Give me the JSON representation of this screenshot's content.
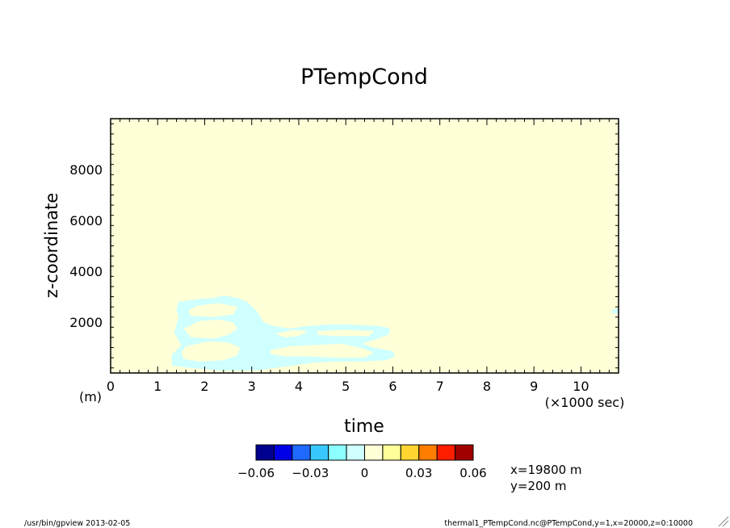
{
  "chart_data": {
    "type": "heatmap",
    "title": "PTempCond",
    "xlabel": "time",
    "x_unit": "(×1000 sec)",
    "ylabel": "z-coordinate",
    "y_unit": "(m)",
    "xlim": [
      0,
      10.8
    ],
    "ylim": [
      0,
      10000
    ],
    "x_ticks": [
      0,
      1,
      2,
      3,
      4,
      5,
      6,
      7,
      8,
      9,
      10
    ],
    "x_tick_labels": [
      "0",
      "1",
      "2",
      "3",
      "4",
      "5",
      "6",
      "7",
      "8",
      "9",
      "10"
    ],
    "y_ticks": [
      2000,
      4000,
      6000,
      8000
    ],
    "y_tick_labels": [
      "2000",
      "4000",
      "6000",
      "8000"
    ],
    "background_level": "0 to 0.01",
    "regions": [
      {
        "level": "-0.01 to 0",
        "color": "#cfffff",
        "polygon": [
          [
            1.3,
            300
          ],
          [
            1.3,
            700
          ],
          [
            1.5,
            1100
          ],
          [
            1.35,
            1600
          ],
          [
            1.45,
            2200
          ],
          [
            1.4,
            2500
          ],
          [
            1.45,
            2800
          ],
          [
            1.85,
            2900
          ],
          [
            2.2,
            2950
          ],
          [
            2.4,
            3050
          ],
          [
            2.7,
            2950
          ],
          [
            2.9,
            2800
          ],
          [
            3.1,
            2450
          ],
          [
            3.25,
            2000
          ],
          [
            3.45,
            1850
          ],
          [
            3.8,
            1750
          ],
          [
            4.2,
            1850
          ],
          [
            4.6,
            1900
          ],
          [
            5.1,
            1900
          ],
          [
            5.7,
            1850
          ],
          [
            5.95,
            1750
          ],
          [
            5.9,
            1500
          ],
          [
            5.6,
            1300
          ],
          [
            5.35,
            1150
          ],
          [
            5.6,
            1000
          ],
          [
            6.0,
            850
          ],
          [
            6.05,
            650
          ],
          [
            5.85,
            500
          ],
          [
            5.4,
            450
          ],
          [
            4.8,
            450
          ],
          [
            4.3,
            400
          ],
          [
            3.7,
            250
          ],
          [
            3.1,
            100
          ],
          [
            2.3,
            100
          ],
          [
            1.7,
            200
          ]
        ]
      },
      {
        "level": "-0.01 to 0",
        "color": "#cfffff",
        "polygon": [
          [
            10.65,
            2350
          ],
          [
            10.8,
            2350
          ],
          [
            10.8,
            2550
          ],
          [
            10.65,
            2480
          ]
        ]
      },
      {
        "level": "0.01 to 0.02",
        "color": "#ffff99",
        "polygon": [
          [
            1.65,
            800
          ],
          [
            1.95,
            650
          ],
          [
            2.2,
            700
          ],
          [
            2.45,
            850
          ],
          [
            2.35,
            1000
          ],
          [
            1.95,
            1000
          ],
          [
            1.75,
            900
          ]
        ]
      },
      {
        "level": "0.01 to 0.02",
        "color": "#ffff99",
        "polygon": [
          [
            1.85,
            2380
          ],
          [
            2.25,
            2330
          ],
          [
            2.55,
            2430
          ],
          [
            2.1,
            2520
          ],
          [
            1.85,
            2470
          ]
        ]
      }
    ],
    "holes": [
      {
        "level": "0 to 0.01",
        "polygon": [
          [
            1.6,
            1050
          ],
          [
            2.1,
            1250
          ],
          [
            2.5,
            1200
          ],
          [
            2.75,
            1000
          ],
          [
            2.7,
            700
          ],
          [
            2.4,
            500
          ],
          [
            1.9,
            450
          ],
          [
            1.55,
            550
          ],
          [
            1.5,
            800
          ]
        ]
      },
      {
        "level": "0 to 0.01",
        "polygon": [
          [
            1.55,
            1750
          ],
          [
            1.9,
            2050
          ],
          [
            2.3,
            2100
          ],
          [
            2.6,
            2000
          ],
          [
            2.7,
            1750
          ],
          [
            2.5,
            1500
          ],
          [
            2.2,
            1350
          ],
          [
            1.7,
            1400
          ]
        ]
      },
      {
        "level": "0 to 0.01",
        "polygon": [
          [
            1.7,
            2250
          ],
          [
            2.15,
            2200
          ],
          [
            2.6,
            2300
          ],
          [
            2.7,
            2600
          ],
          [
            2.3,
            2750
          ],
          [
            1.85,
            2650
          ],
          [
            1.65,
            2450
          ]
        ]
      },
      {
        "level": "0 to 0.01",
        "polygon": [
          [
            3.5,
            1550
          ],
          [
            3.9,
            1700
          ],
          [
            4.2,
            1650
          ],
          [
            4.0,
            1450
          ],
          [
            3.7,
            1400
          ]
        ]
      },
      {
        "level": "0 to 0.01",
        "polygon": [
          [
            4.4,
            1650
          ],
          [
            5.0,
            1700
          ],
          [
            5.6,
            1650
          ],
          [
            5.5,
            1450
          ],
          [
            4.8,
            1450
          ],
          [
            4.4,
            1500
          ]
        ]
      },
      {
        "level": "0 to 0.01",
        "polygon": [
          [
            3.4,
            900
          ],
          [
            3.8,
            1050
          ],
          [
            4.3,
            1100
          ],
          [
            4.9,
            1150
          ],
          [
            5.3,
            1000
          ],
          [
            5.6,
            800
          ],
          [
            5.4,
            600
          ],
          [
            4.8,
            600
          ],
          [
            4.2,
            650
          ],
          [
            3.7,
            650
          ],
          [
            3.4,
            750
          ]
        ]
      }
    ],
    "colorbar": {
      "colors": [
        "#00008f",
        "#0000e6",
        "#1e6aff",
        "#38c8ff",
        "#8cffff",
        "#cfffff",
        "#ffffd8",
        "#ffff99",
        "#ffd531",
        "#ff7d00",
        "#ff1d00",
        "#a10000"
      ],
      "tick_labels": [
        "−0.06",
        "−0.03",
        "0",
        "0.03",
        "0.06"
      ],
      "tick_values": [
        -0.06,
        -0.03,
        0,
        0.03,
        0.06
      ],
      "vmin": -0.06,
      "vmax": 0.06
    },
    "annotations": {
      "cut_x": "x=19800 m",
      "cut_y": "y=200 m"
    },
    "footer_left": "/usr/bin/gpview  2013-02-05",
    "footer_right": "thermal1_PTempCond.nc@PTempCond,y=1,x=20000,z=0:10000"
  }
}
